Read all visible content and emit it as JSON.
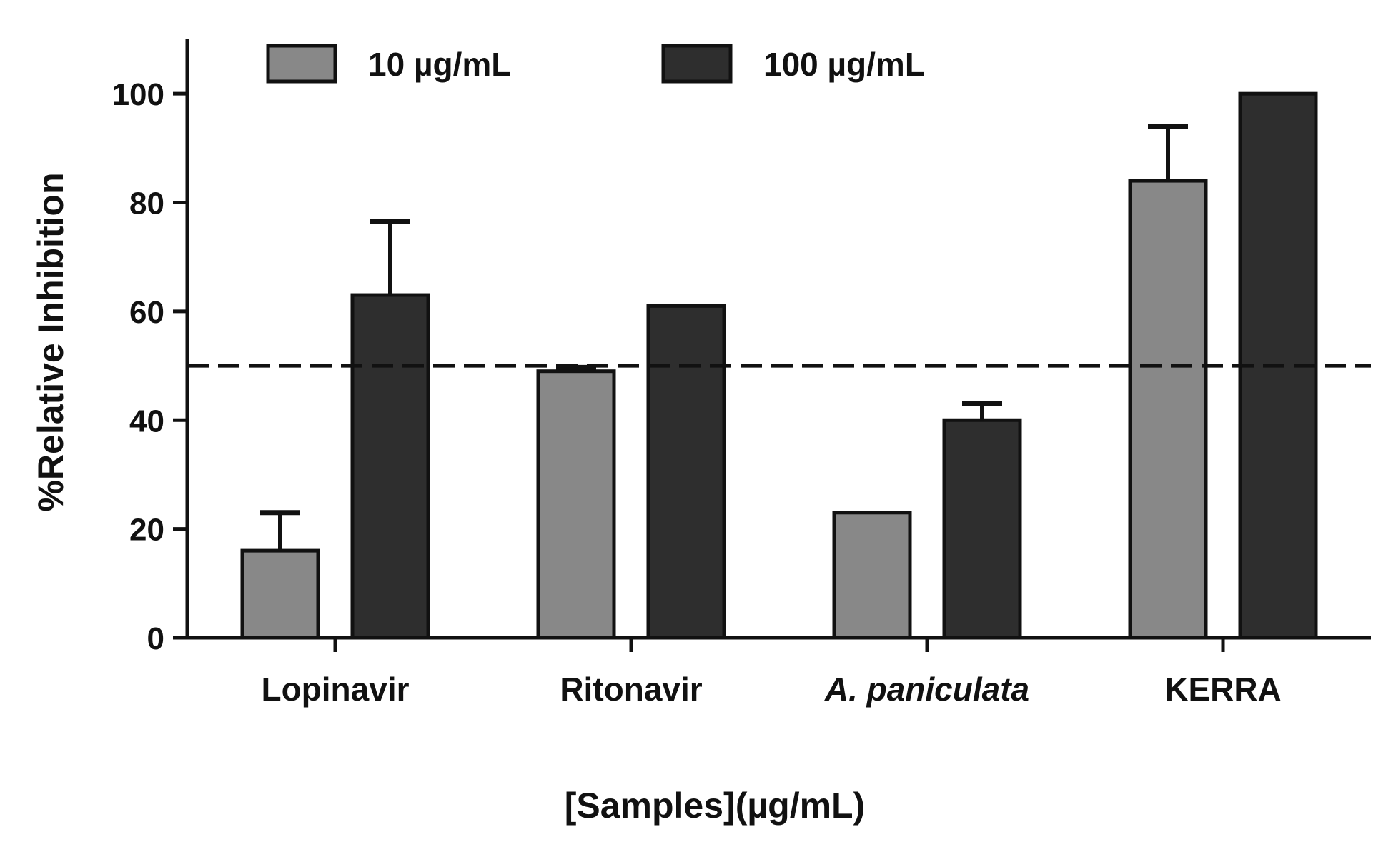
{
  "chart_data": {
    "type": "bar",
    "title": "",
    "ylabel": "%Relative Inhibition",
    "xlabel": "[Samples](µg/mL)",
    "categories": [
      {
        "label": "Lopinavir",
        "italic": false
      },
      {
        "label": "Ritonavir",
        "italic": false
      },
      {
        "label": "A. paniculata",
        "italic": true
      },
      {
        "label": "KERRA",
        "italic": false
      }
    ],
    "series": [
      {
        "name": "10 µg/mL",
        "color": "#888888",
        "values": [
          16,
          49,
          23,
          84
        ],
        "errors": [
          7,
          0.7,
          0,
          10
        ]
      },
      {
        "name": "100 µg/mL",
        "color": "#2e2e2e",
        "values": [
          63,
          61,
          40,
          100
        ],
        "errors": [
          13.5,
          0,
          3,
          0
        ]
      }
    ],
    "ylim": [
      0,
      110
    ],
    "yticks": [
      0,
      20,
      40,
      60,
      80,
      100
    ],
    "reference_line": {
      "y": 50,
      "style": "dashed"
    },
    "grid": false,
    "legend_position": "top"
  }
}
